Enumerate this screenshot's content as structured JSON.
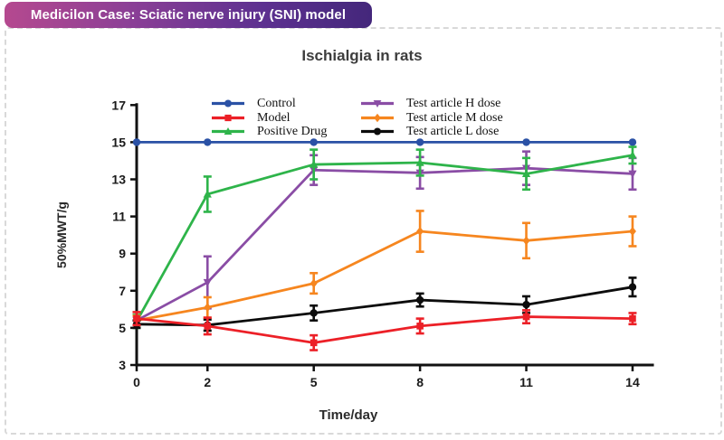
{
  "header": {
    "ribbon_label": "Medicilon Case: Sciatic nerve injury (SNI) model"
  },
  "colors": {
    "ribbon_gradient_left": "#b5498f",
    "ribbon_gradient_right": "#44277b",
    "card_border": "#d9d9d9",
    "axis": "#111111"
  },
  "chart_data": {
    "type": "line",
    "title": "Ischialgia in rats",
    "xlabel": "Time/day",
    "ylabel": "50%MWT/g",
    "x": [
      0,
      2,
      5,
      8,
      11,
      14
    ],
    "xticks": [
      0,
      2,
      5,
      8,
      11,
      14
    ],
    "yticks": [
      3,
      5,
      7,
      9,
      11,
      13,
      15,
      17
    ],
    "ylim": [
      3,
      17
    ],
    "xlim": [
      0,
      14.5
    ],
    "grid": false,
    "error_bars": true,
    "legend_position": "top-inside-two-columns",
    "series": [
      {
        "name": "Control",
        "color": "#2a51a5",
        "marker": "circle",
        "values": [
          15,
          15,
          15,
          15,
          15,
          15
        ],
        "errors": [
          0,
          0,
          0,
          0,
          0,
          0
        ]
      },
      {
        "name": "Model",
        "color": "#ec2027",
        "marker": "square",
        "values": [
          5.5,
          5.1,
          4.2,
          5.1,
          5.6,
          5.5
        ],
        "errors": [
          0.35,
          0.45,
          0.4,
          0.4,
          0.35,
          0.3
        ]
      },
      {
        "name": "Positive Drug",
        "color": "#2eb44a",
        "marker": "triangle-up",
        "values": [
          5.35,
          12.2,
          13.8,
          13.9,
          13.3,
          14.3
        ],
        "errors": [
          0.35,
          0.95,
          0.8,
          0.7,
          0.85,
          0.45
        ]
      },
      {
        "name": "Test article H dose",
        "color": "#8a4da5",
        "marker": "triangle-down",
        "values": [
          5.4,
          7.45,
          13.5,
          13.35,
          13.6,
          13.3
        ],
        "errors": [
          0.25,
          1.4,
          0.8,
          0.85,
          0.9,
          0.85
        ]
      },
      {
        "name": "Test article M dose",
        "color": "#f6861f",
        "marker": "diamond",
        "values": [
          5.4,
          6.1,
          7.4,
          10.2,
          9.7,
          10.2
        ],
        "errors": [
          0.25,
          0.55,
          0.55,
          1.1,
          0.95,
          0.8
        ]
      },
      {
        "name": "Test article L dose",
        "color": "#0c0c0c",
        "marker": "circle",
        "values": [
          5.2,
          5.15,
          5.8,
          6.5,
          6.25,
          7.2
        ],
        "errors": [
          0.2,
          0.3,
          0.4,
          0.35,
          0.45,
          0.5
        ]
      }
    ],
    "legend_columns": [
      [
        0,
        1,
        2
      ],
      [
        3,
        4,
        5
      ]
    ]
  }
}
